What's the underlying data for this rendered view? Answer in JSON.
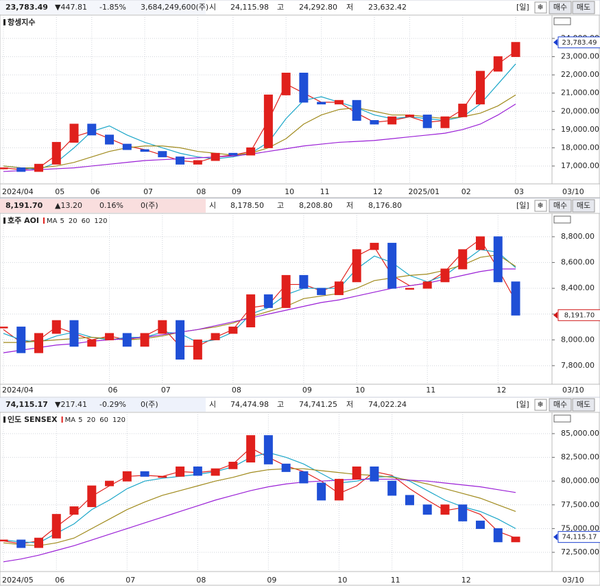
{
  "chart_data": [
    {
      "type": "candlestick",
      "title": "항셍지수",
      "header": [
        {
          "text": "23,783.49",
          "color": "#1a3fd0"
        },
        {
          "text": "▼447.81",
          "color": "#1a3fd0"
        },
        {
          "text": "-1.85%",
          "color": "#1a3fd0"
        },
        {
          "text": "3,684,249,600(주)",
          "color": "#222222"
        },
        {
          "text": "시",
          "color": "#222222"
        },
        {
          "text": "24,115.98",
          "color": "#1a3fd0"
        },
        {
          "text": "고",
          "color": "#222222"
        },
        {
          "text": "24,292.80",
          "color": "#d01818"
        },
        {
          "text": "저",
          "color": "#222222"
        },
        {
          "text": "23,632.42",
          "color": "#1a3fd0"
        }
      ],
      "buttons": [
        "[일]",
        "매수",
        "매도"
      ],
      "price_color": "#1a3fd0",
      "date_label": "03/10",
      "categories": [
        "2024/04",
        null,
        null,
        "05",
        null,
        "06",
        null,
        null,
        "07",
        null,
        null,
        "08",
        null,
        "09",
        null,
        null,
        "10",
        null,
        "11",
        null,
        null,
        "12",
        null,
        "2025/01",
        null,
        null,
        "02",
        null,
        null,
        "03"
      ],
      "values": [
        16900,
        16700,
        17100,
        18300,
        19300,
        18700,
        18200,
        17900,
        17800,
        17500,
        17100,
        17300,
        17700,
        17600,
        18000,
        20900,
        22100,
        20500,
        20400,
        20600,
        19500,
        19300,
        19700,
        19800,
        19100,
        19700,
        20400,
        22200,
        23000,
        23783.49
      ],
      "up_color": "#e0201c",
      "down_color": "#1f4fd6",
      "series": [
        {
          "color": "#e0201c",
          "values": [
            16900,
            16800,
            16900,
            17600,
            18600,
            18900,
            18500,
            18100,
            17900,
            17600,
            17300,
            17200,
            17500,
            17600,
            17800,
            19500,
            21500,
            21000,
            20500,
            20500,
            19900,
            19400,
            19500,
            19700,
            19400,
            19500,
            20100,
            21500,
            22600,
            23300
          ]
        },
        {
          "color": "#1aa6c8",
          "values": [
            17000,
            16900,
            16800,
            17200,
            18000,
            18900,
            19200,
            18700,
            18300,
            18000,
            17700,
            17500,
            17400,
            17500,
            17700,
            18300,
            19600,
            20600,
            20800,
            20500,
            20200,
            19800,
            19600,
            19700,
            19600,
            19500,
            19700,
            20400,
            21500,
            22600
          ]
        },
        {
          "color": "#a08a1c",
          "values": [
            17000,
            16900,
            16900,
            17000,
            17200,
            17500,
            17800,
            18000,
            18100,
            18100,
            18000,
            17800,
            17700,
            17600,
            17700,
            18000,
            18500,
            19300,
            19800,
            20100,
            20200,
            20000,
            19800,
            19800,
            19700,
            19600,
            19700,
            19900,
            20300,
            20900
          ]
        },
        {
          "color": "#9a1fd6",
          "values": [
            16700,
            16750,
            16800,
            16850,
            16900,
            17000,
            17100,
            17200,
            17300,
            17350,
            17400,
            17450,
            17500,
            17550,
            17650,
            17800,
            17950,
            18100,
            18200,
            18300,
            18350,
            18400,
            18500,
            18600,
            18700,
            18800,
            19000,
            19300,
            19800,
            20400
          ]
        }
      ],
      "ylim": [
        16020,
        25280
      ],
      "yticks": [
        {
          "value": 17000,
          "label": "17,000.00"
        },
        {
          "value": 18000,
          "label": "18,000.00"
        },
        {
          "value": 19000,
          "label": "19,000.00"
        },
        {
          "value": 20000,
          "label": "20,000.00"
        },
        {
          "value": 21000,
          "label": "21,000.00"
        },
        {
          "value": 22000,
          "label": "22,000.00"
        },
        {
          "value": 23000,
          "label": "23,000.00"
        },
        {
          "value": 24000,
          "label": "24,000.00"
        }
      ],
      "grid": true
    },
    {
      "type": "candlestick",
      "title": "호주 AOI",
      "legend_prefix": "MA",
      "header": [
        {
          "text": "8,191.70",
          "color": "#d01818"
        },
        {
          "text": "▲13.20",
          "color": "#d01818"
        },
        {
          "text": "0.16%",
          "color": "#d01818"
        },
        {
          "text": "0(주)",
          "color": "#222222"
        },
        {
          "text": "시",
          "color": "#222222"
        },
        {
          "text": "8,178.50",
          "color": "#222222"
        },
        {
          "text": "고",
          "color": "#222222"
        },
        {
          "text": "8,208.80",
          "color": "#d01818"
        },
        {
          "text": "저",
          "color": "#222222"
        },
        {
          "text": "8,176.80",
          "color": "#222222"
        }
      ],
      "buttons": [
        "[일]",
        "매수",
        "매도"
      ],
      "price_color": "#d01818",
      "date_label": "03/10",
      "categories": [
        "2024/04",
        null,
        null,
        null,
        null,
        null,
        "06",
        null,
        null,
        "07",
        null,
        null,
        null,
        "08",
        null,
        null,
        null,
        "09",
        null,
        null,
        "10",
        null,
        null,
        null,
        "11",
        null,
        null,
        null,
        "12",
        null
      ],
      "values": [
        8100,
        7900,
        8050,
        8150,
        7950,
        8000,
        8050,
        7950,
        8050,
        8150,
        7850,
        8000,
        8050,
        8100,
        8350,
        8250,
        8500,
        8400,
        8350,
        8450,
        8700,
        8750,
        8400,
        8400,
        8450,
        8550,
        8700,
        8800,
        8450,
        8191.7
      ],
      "up_color": "#e0201c",
      "down_color": "#1f4fd6",
      "series": [
        {
          "name": "5",
          "color": "#e0201c",
          "values": [
            8080,
            7980,
            8000,
            8100,
            8050,
            8000,
            8030,
            8000,
            8030,
            8100,
            7950,
            7950,
            8020,
            8080,
            8250,
            8270,
            8430,
            8430,
            8380,
            8430,
            8650,
            8720,
            8500,
            8420,
            8440,
            8530,
            8680,
            8780,
            8550,
            8300
          ]
        },
        {
          "name": "20",
          "color": "#1aa6c8",
          "values": [
            8050,
            8000,
            7980,
            8030,
            8060,
            8020,
            8000,
            8020,
            8020,
            8060,
            8050,
            7980,
            8000,
            8060,
            8200,
            8250,
            8350,
            8400,
            8400,
            8400,
            8550,
            8650,
            8600,
            8500,
            8450,
            8500,
            8600,
            8700,
            8680,
            8560
          ]
        },
        {
          "name": "60",
          "color": "#a08a1c",
          "values": [
            7980,
            7980,
            7990,
            8000,
            8010,
            8020,
            8010,
            8000,
            8010,
            8030,
            8060,
            8080,
            8100,
            8130,
            8180,
            8220,
            8260,
            8320,
            8340,
            8360,
            8400,
            8460,
            8480,
            8500,
            8510,
            8540,
            8580,
            8640,
            8660,
            8570
          ]
        },
        {
          "name": "120",
          "color": "#9a1fd6",
          "values": [
            7900,
            7920,
            7940,
            7960,
            7970,
            7990,
            8000,
            8010,
            8020,
            8040,
            8060,
            8080,
            8110,
            8140,
            8170,
            8200,
            8230,
            8260,
            8290,
            8310,
            8340,
            8370,
            8400,
            8420,
            8440,
            8470,
            8500,
            8530,
            8550,
            8550
          ]
        }
      ],
      "ylim": [
        7656,
        8981
      ],
      "yticks": [
        {
          "value": 7800,
          "label": "7,800.00"
        },
        {
          "value": 8000,
          "label": "8,000.00"
        },
        {
          "value": 8200,
          "label": "8,200.00"
        },
        {
          "value": 8400,
          "label": "8,400.00"
        },
        {
          "value": 8600,
          "label": "8,600.00"
        },
        {
          "value": 8800,
          "label": "8,800.00"
        }
      ],
      "grid": true
    },
    {
      "type": "candlestick",
      "title": "인도 SENSEX",
      "legend_prefix": "MA",
      "header": [
        {
          "text": "74,115.17",
          "color": "#1a3fd0"
        },
        {
          "text": "▼217.41",
          "color": "#1a3fd0"
        },
        {
          "text": "-0.29%",
          "color": "#1a3fd0"
        },
        {
          "text": "0(주)",
          "color": "#222222"
        },
        {
          "text": "시",
          "color": "#222222"
        },
        {
          "text": "74,474.98",
          "color": "#d01818"
        },
        {
          "text": "고",
          "color": "#222222"
        },
        {
          "text": "74,741.25",
          "color": "#d01818"
        },
        {
          "text": "저",
          "color": "#222222"
        },
        {
          "text": "74,022.24",
          "color": "#1a3fd0"
        }
      ],
      "buttons": [
        "[일]",
        "매수",
        "매도"
      ],
      "price_color": "#1a3fd0",
      "date_label": "03/10",
      "categories": [
        "2024/05",
        null,
        null,
        "06",
        null,
        null,
        null,
        "07",
        null,
        null,
        null,
        "08",
        null,
        null,
        null,
        "09",
        null,
        null,
        null,
        "10",
        null,
        null,
        "11",
        null,
        null,
        null,
        "12",
        null,
        null,
        null
      ],
      "values": [
        73800,
        73000,
        74000,
        76500,
        77300,
        79500,
        80000,
        81000,
        80500,
        80500,
        81500,
        80600,
        81300,
        82000,
        84800,
        81800,
        81000,
        79800,
        78000,
        80200,
        81500,
        80000,
        78500,
        77500,
        76500,
        77500,
        75800,
        75000,
        73600,
        74115.17
      ],
      "up_color": "#e0201c",
      "down_color": "#1f4fd6",
      "series": [
        {
          "name": "5",
          "color": "#e0201c",
          "values": [
            73700,
            73400,
            73700,
            75200,
            76600,
            78400,
            79500,
            80500,
            80600,
            80500,
            81000,
            80900,
            81100,
            81800,
            83500,
            82500,
            81600,
            81000,
            80000,
            78700,
            79500,
            81000,
            80600,
            79200,
            78000,
            76900,
            77200,
            76500,
            74700,
            74000
          ]
        },
        {
          "name": "20",
          "color": "#1aa6c8",
          "values": [
            73800,
            73600,
            73500,
            74500,
            75500,
            77000,
            78000,
            79200,
            80000,
            80300,
            80500,
            80700,
            81000,
            81500,
            82500,
            83000,
            82500,
            81800,
            80800,
            79800,
            80000,
            80400,
            80500,
            80000,
            79000,
            78000,
            77300,
            76800,
            76000,
            75000
          ]
        },
        {
          "name": "60",
          "color": "#a08a1c",
          "values": [
            73500,
            73300,
            73200,
            73500,
            74000,
            75000,
            76000,
            77000,
            77800,
            78500,
            79000,
            79500,
            80000,
            80400,
            80900,
            81200,
            81300,
            81300,
            81100,
            80900,
            80700,
            80600,
            80400,
            80100,
            79700,
            79200,
            78700,
            78200,
            77500,
            76800
          ]
        },
        {
          "name": "120",
          "color": "#9a1fd6",
          "values": [
            71500,
            71800,
            72200,
            72700,
            73200,
            73800,
            74400,
            75000,
            75600,
            76200,
            76800,
            77400,
            78000,
            78500,
            79000,
            79400,
            79700,
            79900,
            80000,
            80100,
            80200,
            80200,
            80200,
            80100,
            80000,
            79800,
            79600,
            79400,
            79100,
            78800
          ]
        }
      ],
      "ylim": [
        70477,
        87240
      ],
      "yticks": [
        {
          "value": 72500,
          "label": "72,500.00"
        },
        {
          "value": 75000,
          "label": "75,000.00"
        },
        {
          "value": 77500,
          "label": "77,500.00"
        },
        {
          "value": 80000,
          "label": "80,000.00"
        },
        {
          "value": 82500,
          "label": "82,500.00"
        },
        {
          "value": 85000,
          "label": "85,000.00"
        }
      ],
      "grid": true
    }
  ]
}
